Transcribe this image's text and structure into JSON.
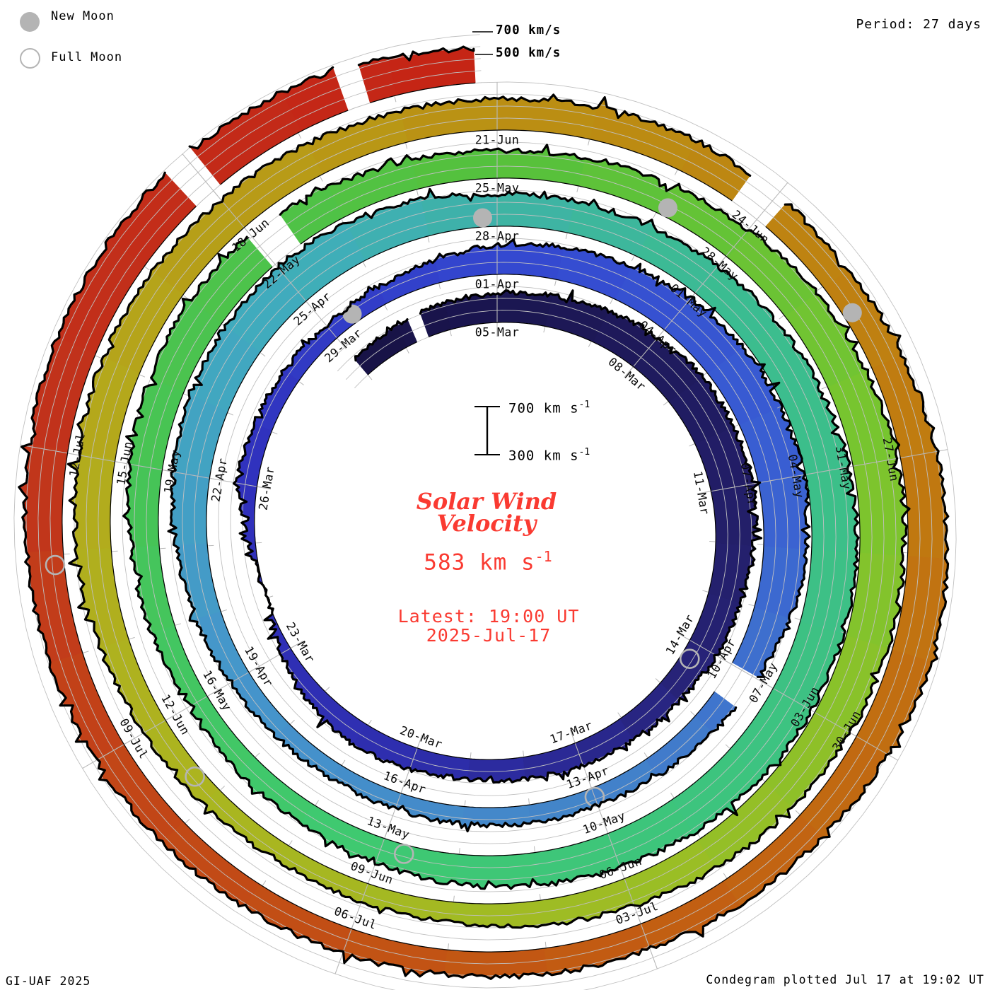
{
  "header": {
    "period_label": "Period: 27 days"
  },
  "legend": {
    "new_moon_label": "New Moon",
    "full_moon_label": "Full Moon",
    "moon_color": "#b4b4b4"
  },
  "end_labels": {
    "outer": "700 km/s",
    "inner": "500 km/s"
  },
  "scale_bar": {
    "top_label": "700 km s",
    "top_sup": "-1",
    "bottom_label": "300 km s",
    "bottom_sup": "-1"
  },
  "center_text": {
    "title_line1": "Solar Wind",
    "title_line2": "Velocity",
    "value": "583 km s",
    "value_sup": "-1",
    "latest_line1": "Latest: 19:00 UT",
    "latest_line2": "2025-Jul-17",
    "accent_color": "#fa3a31"
  },
  "footer": {
    "left": "GI-UAF 2025",
    "right": "Condegram plotted Jul 17 at 19:02 UT"
  },
  "chart_data": {
    "type": "spiral_polar_time_series_condegram",
    "title": "Solar Wind Velocity",
    "units": "km/s",
    "period_days": 27,
    "latest_value_kms": 583,
    "latest_time": "19:00 UT 2025-Jul-17",
    "velocity_scale": {
      "min": 300,
      "max": 700,
      "gridline_step": 100
    },
    "day_range": [
      -3,
      134.79
    ],
    "day_zero_date": "05-Mar-2025",
    "ring_start_dates_at_top": [
      "05-Mar",
      "01-Apr",
      "28-Apr",
      "25-May",
      "21-Jun"
    ],
    "spokes": [
      {
        "angle_deg": 0,
        "dates": [
          "05-Mar",
          "01-Apr",
          "28-Apr",
          "25-May",
          "21-Jun"
        ]
      },
      {
        "angle_deg": 40,
        "dates": [
          "08-Mar",
          "04-Apr",
          "01-May",
          "28-May",
          "24-Jun"
        ]
      },
      {
        "angle_deg": 80,
        "dates": [
          "11-Mar",
          "07-Apr",
          "04-May",
          "31-May",
          "27-Jun"
        ]
      },
      {
        "angle_deg": 120,
        "dates": [
          "14-Mar",
          "10-Apr",
          "07-May",
          "03-Jun",
          "30-Jun"
        ]
      },
      {
        "angle_deg": 160,
        "dates": [
          "17-Mar",
          "13-Apr",
          "10-May",
          "06-Jun",
          "03-Jul"
        ]
      },
      {
        "angle_deg": 200,
        "dates": [
          "20-Mar",
          "16-Apr",
          "13-May",
          "09-Jun",
          "06-Jul"
        ]
      },
      {
        "angle_deg": 240,
        "dates": [
          "23-Mar",
          "19-Apr",
          "16-May",
          "12-Jun",
          "09-Jul"
        ]
      },
      {
        "angle_deg": 280,
        "dates": [
          "26-Mar",
          "22-Apr",
          "19-May",
          "15-Jun",
          "12-Jul"
        ]
      },
      {
        "angle_deg": 320,
        "dates": [
          "29-Mar",
          "25-Apr",
          "22-May",
          "18-Jun"
        ]
      }
    ],
    "series_control_points": [
      [
        -3,
        470
      ],
      [
        -1.5,
        520
      ],
      [
        0,
        545
      ],
      [
        2,
        585
      ],
      [
        4,
        650
      ],
      [
        6,
        655
      ],
      [
        8,
        585
      ],
      [
        10,
        520
      ],
      [
        12,
        495
      ],
      [
        14,
        465
      ],
      [
        16,
        505
      ],
      [
        17.5,
        430
      ],
      [
        19,
        295
      ],
      [
        19.8,
        330
      ],
      [
        21,
        470
      ],
      [
        22.5,
        450
      ],
      [
        24,
        440
      ],
      [
        25.5,
        465
      ],
      [
        27,
        545
      ],
      [
        29,
        610
      ],
      [
        31,
        665
      ],
      [
        33,
        685
      ],
      [
        34.5,
        645
      ],
      [
        36,
        545
      ],
      [
        37.5,
        480
      ],
      [
        39,
        455
      ],
      [
        41,
        445
      ],
      [
        43,
        435
      ],
      [
        45,
        470
      ],
      [
        47,
        560
      ],
      [
        49,
        645
      ],
      [
        51,
        675
      ],
      [
        52.5,
        635
      ],
      [
        54,
        565
      ],
      [
        56,
        575
      ],
      [
        58,
        615
      ],
      [
        60,
        665
      ],
      [
        62,
        680
      ],
      [
        64,
        655
      ],
      [
        66,
        600
      ],
      [
        68,
        545
      ],
      [
        70,
        490
      ],
      [
        72,
        475
      ],
      [
        74,
        530
      ],
      [
        76,
        610
      ],
      [
        78,
        635
      ],
      [
        79.5,
        560
      ],
      [
        81,
        525
      ],
      [
        83,
        555
      ],
      [
        85,
        625
      ],
      [
        87,
        670
      ],
      [
        89,
        665
      ],
      [
        91,
        615
      ],
      [
        93,
        540
      ],
      [
        95,
        470
      ],
      [
        97,
        450
      ],
      [
        99,
        505
      ],
      [
        101,
        585
      ],
      [
        103,
        630
      ],
      [
        105,
        600
      ],
      [
        107,
        565
      ],
      [
        108,
        560
      ],
      [
        110,
        585
      ],
      [
        112,
        545
      ],
      [
        114,
        605
      ],
      [
        116,
        645
      ],
      [
        118,
        560
      ],
      [
        120,
        520
      ],
      [
        122,
        505
      ],
      [
        124,
        525
      ],
      [
        126,
        565
      ],
      [
        128,
        605
      ],
      [
        130,
        645
      ],
      [
        132,
        675
      ],
      [
        133.5,
        655
      ],
      [
        134.79,
        583
      ]
    ],
    "noise_amplitude_kms": 42,
    "data_gaps_days": [
      [
        -1.7,
        -1.5
      ],
      [
        36.0,
        36.5
      ],
      [
        78.0,
        78.4
      ],
      [
        110.7,
        111.1
      ],
      [
        131.8,
        132.05
      ],
      [
        133.55,
        133.75
      ]
    ],
    "moons": {
      "new_moon_days": [
        24.45,
        53.8,
        83.1,
        112.4
      ],
      "new_moon_dates": [
        "2025-03-29",
        "2025-04-27",
        "2025-05-27",
        "2025-06-25"
      ],
      "full_moon_days": [
        9.3,
        39.0,
        68.7,
        98.3,
        127.9
      ],
      "full_moon_dates": [
        "2025-03-14",
        "2025-04-13",
        "2025-05-12",
        "2025-06-11",
        "2025-07-10"
      ],
      "marker_color": "#b4b4b4"
    },
    "color_stops": [
      [
        -3,
        "#171245"
      ],
      [
        9,
        "#262273"
      ],
      [
        15,
        "#2e2eae"
      ],
      [
        21,
        "#3030bc"
      ],
      [
        27,
        "#3347d0"
      ],
      [
        33,
        "#3a60d2"
      ],
      [
        39,
        "#4384c9"
      ],
      [
        45,
        "#4595cb"
      ],
      [
        51,
        "#3fadbc"
      ],
      [
        54,
        "#3eb2a6"
      ],
      [
        57,
        "#3bbb92"
      ],
      [
        63,
        "#3dc282"
      ],
      [
        69,
        "#3ec972"
      ],
      [
        75,
        "#47c455"
      ],
      [
        81,
        "#55c13c"
      ],
      [
        87,
        "#7ac52e"
      ],
      [
        93,
        "#9dbd24"
      ],
      [
        99,
        "#adb31f"
      ],
      [
        102,
        "#b3aa1c"
      ],
      [
        108,
        "#bb9013"
      ],
      [
        114,
        "#c07a10"
      ],
      [
        120,
        "#c25d12"
      ],
      [
        126,
        "#c24417"
      ],
      [
        129,
        "#c1331c"
      ],
      [
        134.79,
        "#c52415"
      ]
    ],
    "grid": {
      "color": "#c0c0c0",
      "spoke_color": "#b8b8b8",
      "levels_kms": [
        300,
        400,
        500,
        600,
        700
      ],
      "daily_ticks": true
    },
    "geometry": {
      "center": [
        703,
        748
      ],
      "base_radius": 292,
      "radius_per_turn": 68
    }
  }
}
